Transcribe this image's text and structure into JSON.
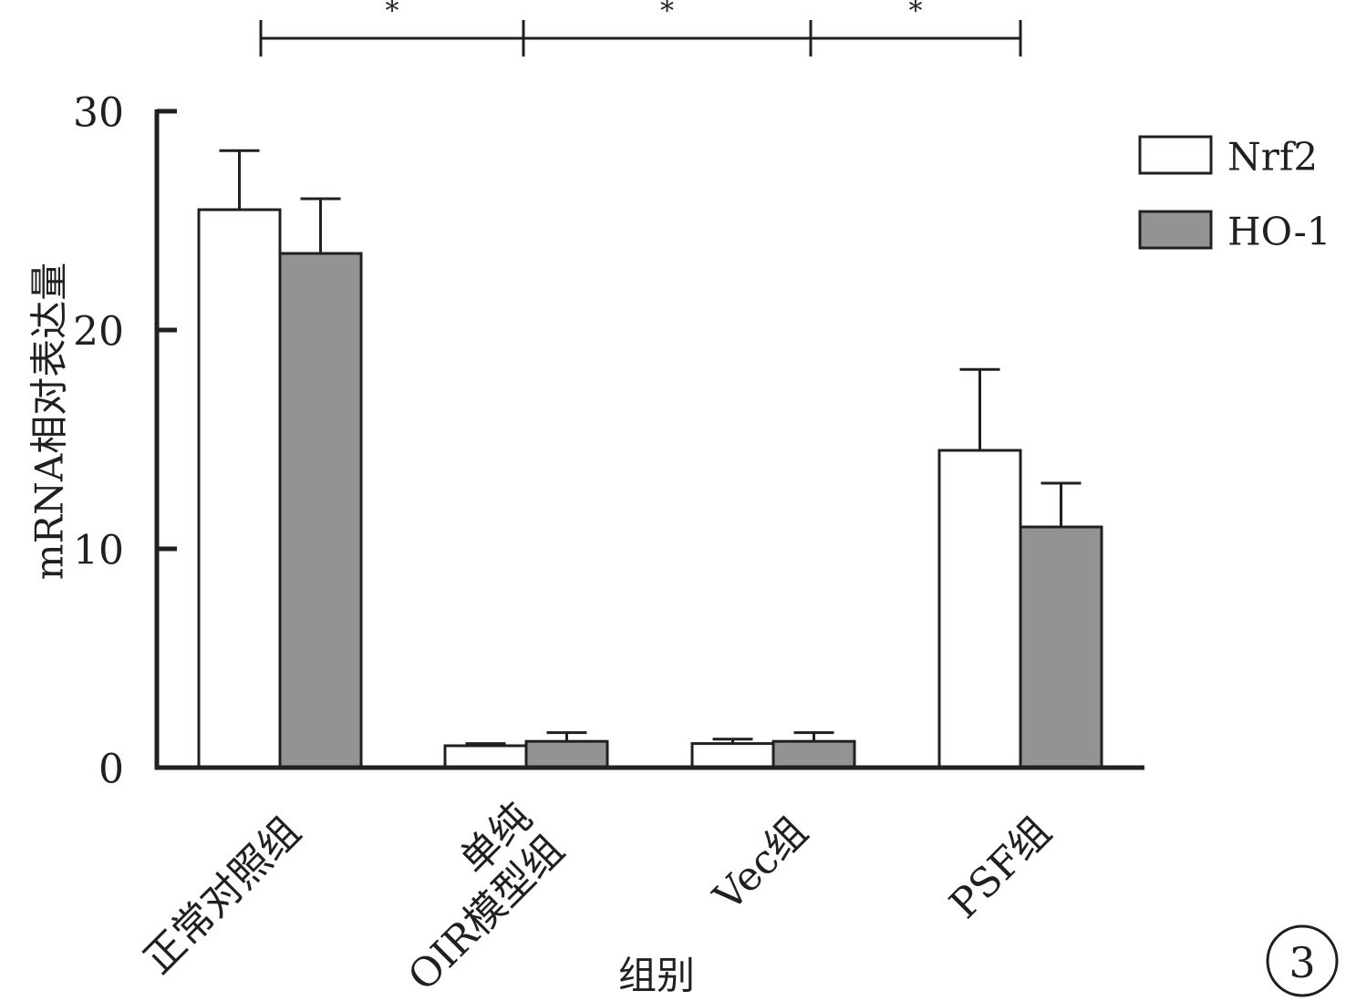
{
  "chart_data": {
    "type": "bar",
    "categories": [
      "正常对照组",
      "单纯\nOIR模型组",
      "Vec组",
      "PSF组"
    ],
    "series": [
      {
        "name": "Nrf2",
        "values": [
          25.5,
          1.0,
          1.1,
          14.5
        ],
        "errors": [
          2.7,
          0.1,
          0.2,
          3.7
        ],
        "color": "#ffffff"
      },
      {
        "name": "HO-1",
        "values": [
          23.5,
          1.2,
          1.2,
          11.0
        ],
        "errors": [
          2.5,
          0.4,
          0.4,
          2.0
        ],
        "color": "#939393"
      }
    ],
    "ylabel": "mRNA相对表达量",
    "xlabel": "组别",
    "ylim": [
      0,
      30
    ],
    "yticks": [
      0,
      10,
      20,
      30
    ],
    "legend_position": "top-right",
    "grid": false,
    "significance": [
      {
        "from_category": 0,
        "to_category": 1,
        "label": "*"
      },
      {
        "from_category": 1,
        "to_category": 2,
        "label": "*"
      },
      {
        "from_category": 2,
        "to_category": 3,
        "label": "*"
      }
    ],
    "panel_label": "3"
  }
}
